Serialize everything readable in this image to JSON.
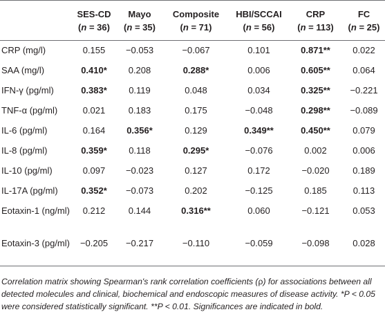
{
  "header": {
    "columns": [
      {
        "name": "SES-CD",
        "n": "36"
      },
      {
        "name": "Mayo",
        "n": "35"
      },
      {
        "name": "Composite",
        "n": "71"
      },
      {
        "name": "HBI/SCCAI",
        "n": "56"
      },
      {
        "name": "CRP",
        "n": "113"
      },
      {
        "name": "FC",
        "n": "25"
      }
    ],
    "n_prefix": "n",
    "n_eq": " = "
  },
  "rows": [
    {
      "label": "CRP (mg/l)",
      "cells": [
        {
          "v": "0.155"
        },
        {
          "v": "−0.053"
        },
        {
          "v": "−0.067"
        },
        {
          "v": "0.101"
        },
        {
          "v": "0.871**",
          "bold": true
        },
        {
          "v": "0.022"
        }
      ]
    },
    {
      "label": "SAA (mg/l)",
      "cells": [
        {
          "v": "0.410*",
          "bold": true
        },
        {
          "v": "0.208"
        },
        {
          "v": "0.288*",
          "bold": true
        },
        {
          "v": "0.006"
        },
        {
          "v": "0.605**",
          "bold": true
        },
        {
          "v": "0.064"
        }
      ]
    },
    {
      "label": "IFN-γ (pg/ml)",
      "cells": [
        {
          "v": "0.383*",
          "bold": true
        },
        {
          "v": "0.119"
        },
        {
          "v": "0.048"
        },
        {
          "v": "0.034"
        },
        {
          "v": "0.325**",
          "bold": true
        },
        {
          "v": "−0.221"
        }
      ]
    },
    {
      "label": "TNF-α (pg/ml)",
      "cells": [
        {
          "v": "0.021"
        },
        {
          "v": "0.183"
        },
        {
          "v": "0.175"
        },
        {
          "v": "−0.048"
        },
        {
          "v": "0.298**",
          "bold": true
        },
        {
          "v": "−0.089"
        }
      ]
    },
    {
      "label": "IL-6 (pg/ml)",
      "cells": [
        {
          "v": "0.164"
        },
        {
          "v": "0.356*",
          "bold": true
        },
        {
          "v": "0.129"
        },
        {
          "v": "0.349**",
          "bold": true
        },
        {
          "v": "0.450**",
          "bold": true
        },
        {
          "v": "0.079"
        }
      ]
    },
    {
      "label": "IL-8 (pg/ml)",
      "cells": [
        {
          "v": "0.359*",
          "bold": true
        },
        {
          "v": "0.118"
        },
        {
          "v": "0.295*",
          "bold": true
        },
        {
          "v": "−0.076"
        },
        {
          "v": "0.002"
        },
        {
          "v": "0.006"
        }
      ]
    },
    {
      "label": "IL-10 (pg/ml)",
      "cells": [
        {
          "v": "0.097"
        },
        {
          "v": "−0.023"
        },
        {
          "v": "0.127"
        },
        {
          "v": "0.172"
        },
        {
          "v": "−0.020"
        },
        {
          "v": "0.189"
        }
      ]
    },
    {
      "label": "IL-17A (pg/ml)",
      "cells": [
        {
          "v": "0.352*",
          "bold": true
        },
        {
          "v": "−0.073"
        },
        {
          "v": "0.202"
        },
        {
          "v": "−0.125"
        },
        {
          "v": "0.185"
        },
        {
          "v": "0.113"
        }
      ]
    },
    {
      "label": "Eotaxin-1 (ng/ml)",
      "cells": [
        {
          "v": "0.212"
        },
        {
          "v": "0.144"
        },
        {
          "v": "0.316**",
          "bold": true
        },
        {
          "v": "0.060"
        },
        {
          "v": "−0.121"
        },
        {
          "v": "0.053"
        }
      ]
    },
    {
      "label": "Eotaxin-3 (pg/ml)",
      "cells": [
        {
          "v": "−0.205"
        },
        {
          "v": "−0.217"
        },
        {
          "v": "−0.110"
        },
        {
          "v": "−0.059"
        },
        {
          "v": "−0.098"
        },
        {
          "v": "0.028"
        }
      ]
    }
  ],
  "footnote": {
    "before_rho": "Correlation matrix showing Spearman's rank correlation coefficients (",
    "rho": "ρ",
    "after_rho": ") for associations between all detected molecules and clinical, biochemical and endoscopic measures of disease activity. *P < 0.05 were considered statistically significant. **P < 0.01. Significances are indicated in bold."
  }
}
